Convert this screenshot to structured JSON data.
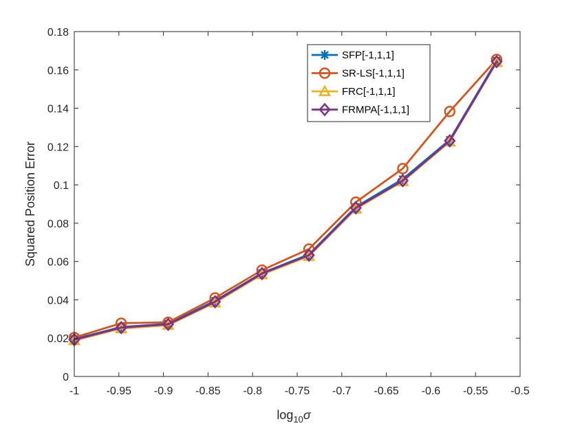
{
  "chart_data": {
    "type": "line",
    "title": "",
    "xlabel": "log",
    "xlabel_sub": "10",
    "xlabel_symbol": "σ",
    "ylabel": "Squared Position Error",
    "xlim": [
      -1,
      -0.5
    ],
    "ylim": [
      0,
      0.18
    ],
    "x_ticks": [
      -1,
      -0.95,
      -0.9,
      -0.85,
      -0.8,
      -0.75,
      -0.7,
      -0.65,
      -0.6,
      -0.55,
      -0.5
    ],
    "x_tick_labels": [
      "-1",
      "-0.95",
      "-0.9",
      "-0.85",
      "-0.8",
      "-0.75",
      "-0.7",
      "-0.65",
      "-0.6",
      "-0.55",
      "-0.5"
    ],
    "y_ticks": [
      0,
      0.02,
      0.04,
      0.06,
      0.08,
      0.1,
      0.12,
      0.14,
      0.16,
      0.18
    ],
    "y_tick_labels": [
      "0",
      "0.02",
      "0.04",
      "0.06",
      "0.08",
      "0.1",
      "0.12",
      "0.14",
      "0.16",
      "0.18"
    ],
    "grid": false,
    "legend_position": "top-right",
    "x": [
      -1,
      -0.9474,
      -0.8947,
      -0.8421,
      -0.7895,
      -0.7368,
      -0.6842,
      -0.6316,
      -0.5789,
      -0.5263
    ],
    "series": [
      {
        "name": "SFP[-1,1,1]",
        "color": "#0072BD",
        "marker": "asterisk",
        "values": [
          0.0195,
          0.0258,
          0.0275,
          0.0395,
          0.054,
          0.0637,
          0.0885,
          0.103,
          0.1235,
          0.1648
        ]
      },
      {
        "name": "SR-LS[-1,1,1]",
        "color": "#D95319",
        "marker": "circle",
        "values": [
          0.0203,
          0.0278,
          0.0283,
          0.041,
          0.0555,
          0.0665,
          0.091,
          0.1085,
          0.1383,
          0.1655
        ]
      },
      {
        "name": "FRC[-1,1,1]",
        "color": "#EDB120",
        "marker": "triangle",
        "values": [
          0.0188,
          0.025,
          0.0268,
          0.0385,
          0.0532,
          0.0628,
          0.0875,
          0.1018,
          0.1225,
          0.164
        ]
      },
      {
        "name": "FRMPA[-1,1,1]",
        "color": "#7E2F8E",
        "marker": "diamond",
        "values": [
          0.0192,
          0.0255,
          0.0272,
          0.039,
          0.0537,
          0.0633,
          0.088,
          0.1022,
          0.123,
          0.1643
        ]
      }
    ]
  }
}
